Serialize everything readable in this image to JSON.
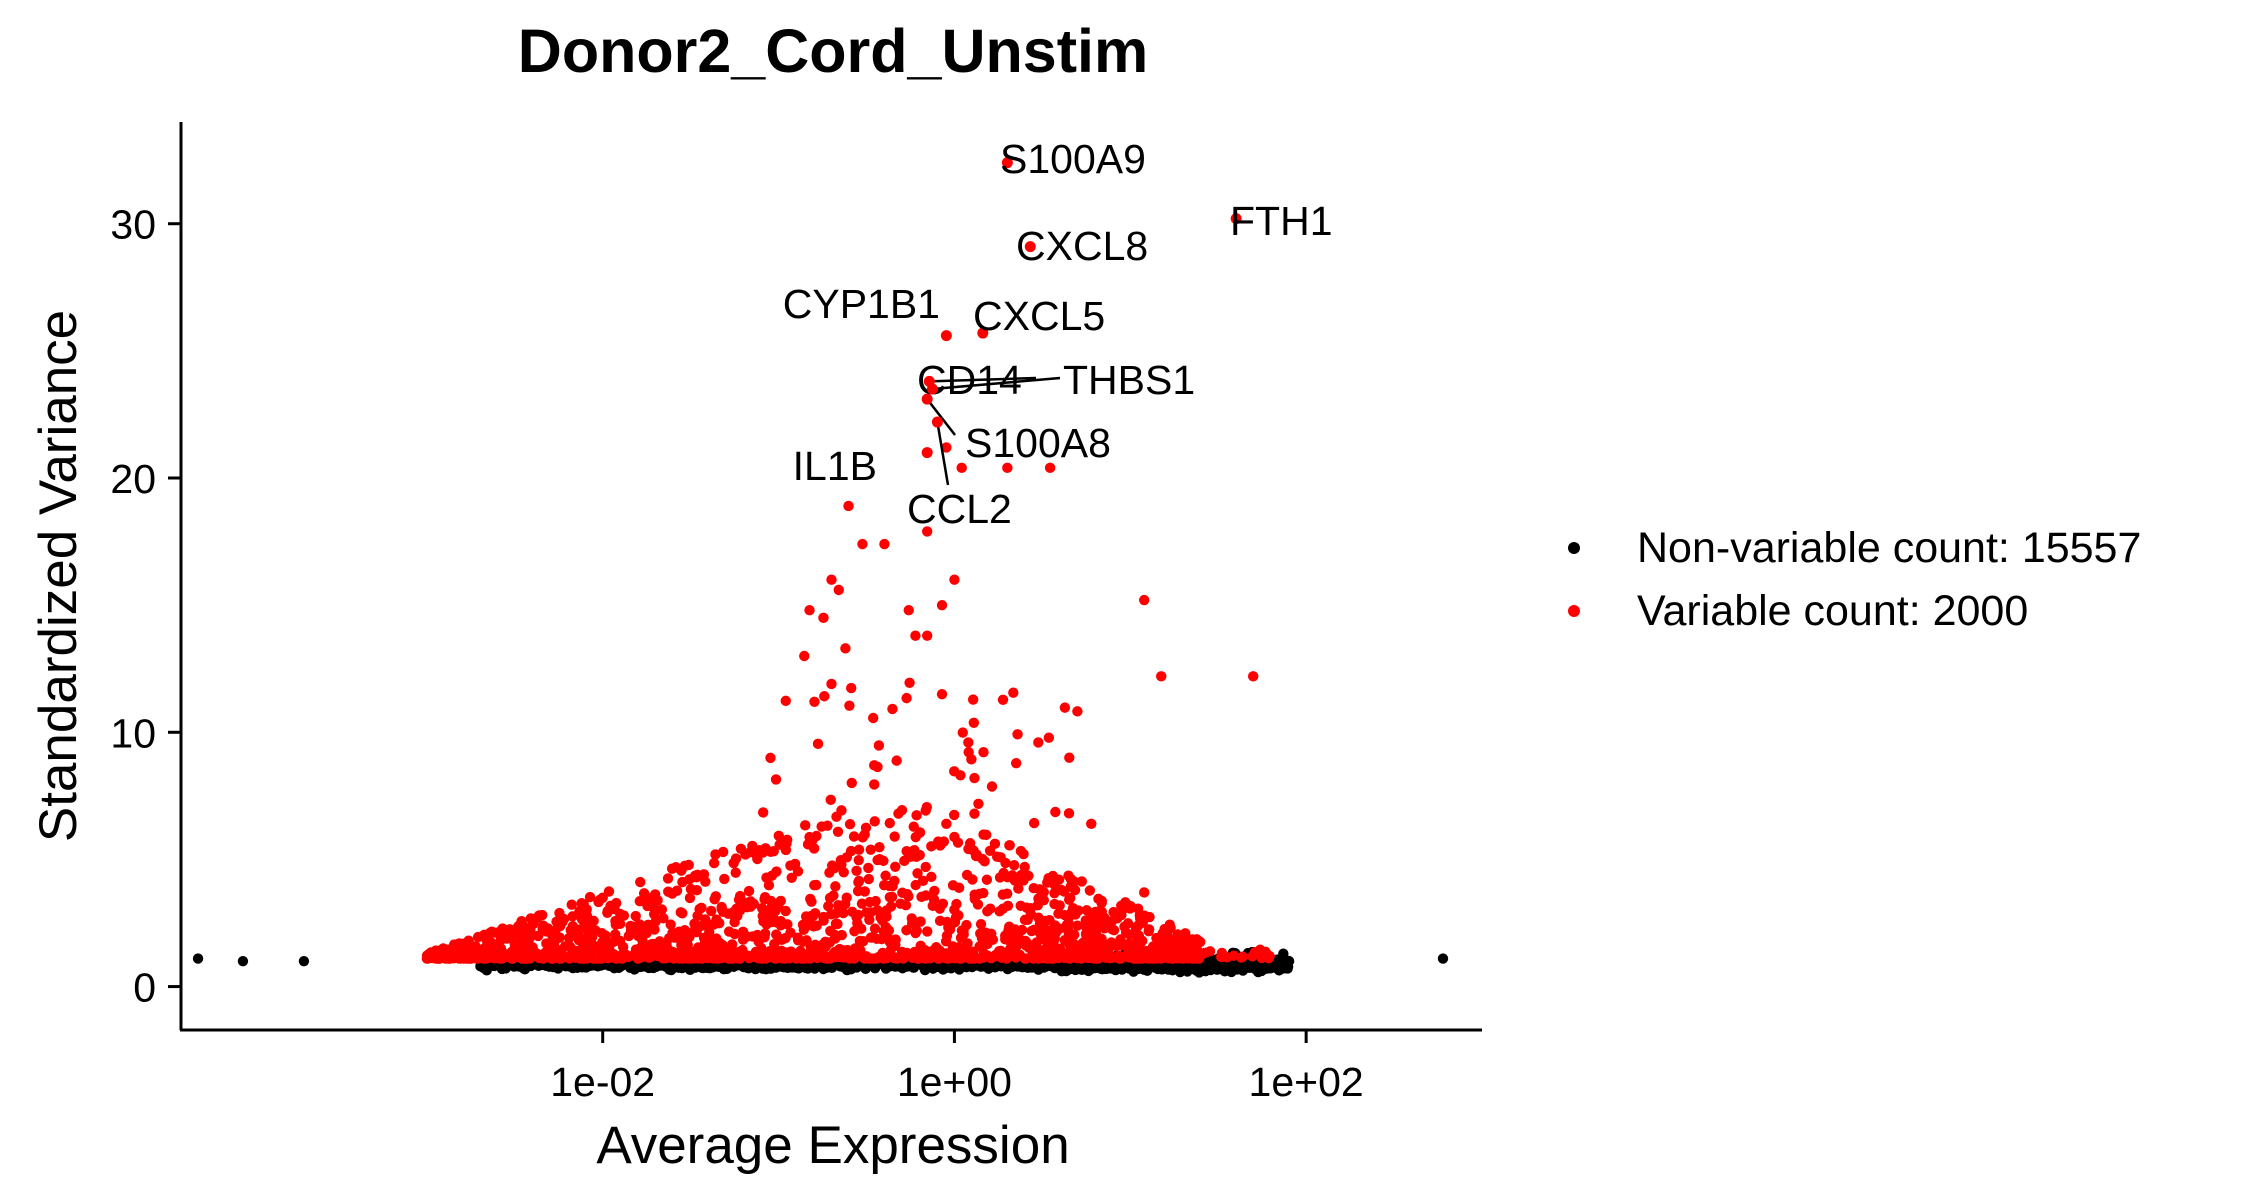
{
  "chart_data": {
    "type": "scatter",
    "title": "Donor2_Cord_Unstim",
    "xlabel": "Average Expression",
    "ylabel": "Standardized Variance",
    "x_scale": "log10",
    "xlim": [
      4e-05,
      1000
    ],
    "ylim": [
      -1,
      34
    ],
    "x_ticks": [
      0.01,
      1,
      100
    ],
    "x_tick_labels": [
      "1e-02",
      "1e+00",
      "1e+02"
    ],
    "y_ticks": [
      0,
      10,
      20,
      30
    ],
    "y_tick_labels": [
      "0",
      "10",
      "20",
      "30"
    ],
    "grid": false,
    "legend_position": "right",
    "series": [
      {
        "name": "Non-variable count: 15557",
        "color": "#000000"
      },
      {
        "name": "Variable count: 2000",
        "color": "#ff0000"
      }
    ],
    "labeled_points": [
      {
        "gene": "S100A9",
        "x": 2.0,
        "y": 32.4
      },
      {
        "gene": "FTH1",
        "x": 40.0,
        "y": 30.2
      },
      {
        "gene": "CXCL8",
        "x": 2.7,
        "y": 29.1
      },
      {
        "gene": "CYP1B1",
        "x": 0.9,
        "y": 25.6
      },
      {
        "gene": "CXCL5",
        "x": 1.45,
        "y": 25.7
      },
      {
        "gene": "CD14",
        "x": 0.72,
        "y": 23.8
      },
      {
        "gene": "THBS1",
        "x": 0.75,
        "y": 23.5
      },
      {
        "gene": "S100A8",
        "x": 0.7,
        "y": 23.1
      },
      {
        "gene": "IL1B",
        "x": 0.7,
        "y": 21.0
      },
      {
        "gene": "CCL2",
        "x": 0.8,
        "y": 22.2
      }
    ],
    "other_variable_points": [
      [
        0.9,
        21.2
      ],
      [
        1.1,
        20.4
      ],
      [
        2.0,
        20.4
      ],
      [
        3.5,
        20.4
      ],
      [
        0.25,
        18.9
      ],
      [
        0.3,
        17.4
      ],
      [
        0.4,
        17.4
      ],
      [
        0.7,
        17.9
      ],
      [
        0.2,
        16.0
      ],
      [
        0.22,
        15.6
      ],
      [
        1.0,
        16.0
      ],
      [
        0.85,
        15.0
      ],
      [
        0.55,
        14.8
      ],
      [
        0.15,
        14.8
      ],
      [
        0.18,
        14.5
      ],
      [
        0.14,
        13.0
      ],
      [
        0.24,
        13.3
      ],
      [
        0.6,
        13.8
      ],
      [
        0.7,
        13.8
      ],
      [
        12.0,
        15.2
      ],
      [
        15.0,
        12.2
      ],
      [
        50.0,
        12.2
      ],
      [
        0.85,
        11.5
      ],
      [
        0.2,
        11.9
      ],
      [
        0.16,
        11.2
      ],
      [
        1.2,
        9.6
      ],
      [
        3.0,
        9.6
      ],
      [
        4.5,
        9.0
      ],
      [
        1.3,
        8.2
      ],
      [
        0.35,
        8.7
      ],
      [
        0.9,
        6.4
      ],
      [
        6.0,
        6.4
      ],
      [
        12.0,
        3.7
      ],
      [
        1.3,
        6.8
      ]
    ]
  }
}
